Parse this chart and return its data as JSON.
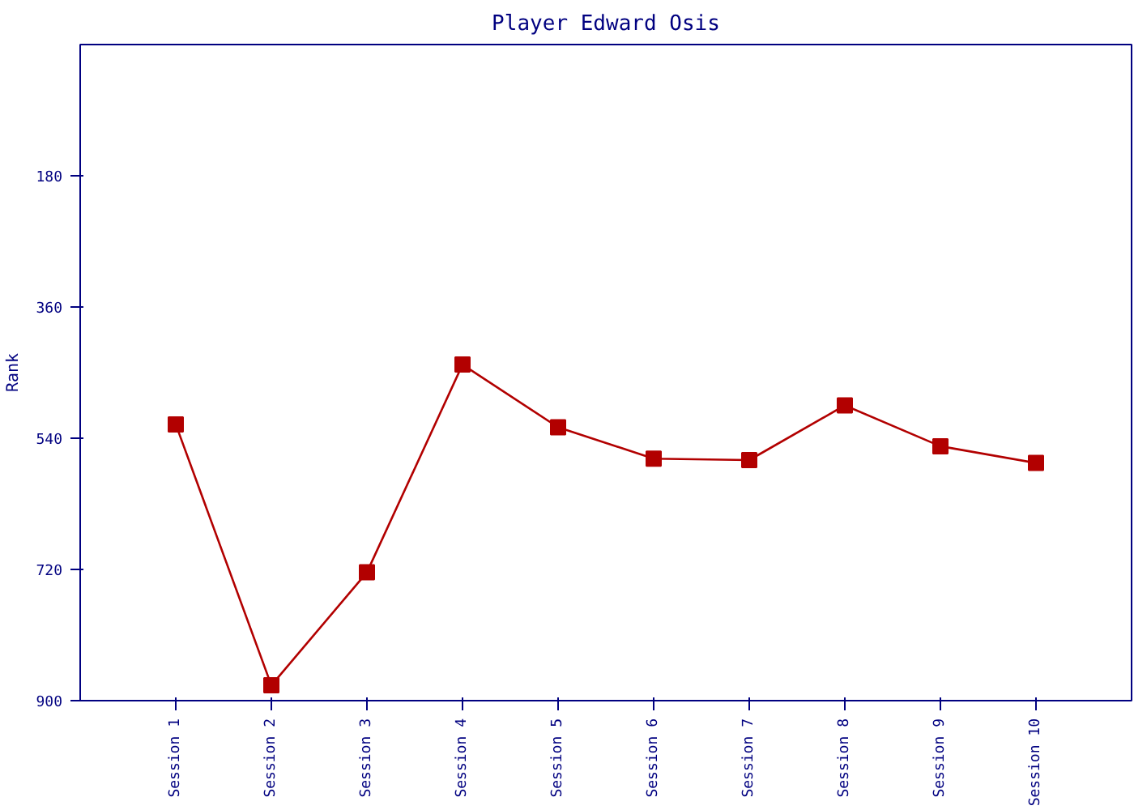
{
  "chart_data": {
    "type": "line",
    "title": "Player Edward Osis",
    "ylabel": "Rank",
    "categories": [
      "Session 1",
      "Session 2",
      "Session 3",
      "Session 4",
      "Session 5",
      "Session 6",
      "Session 7",
      "Session 8",
      "Session 9",
      "Session 10"
    ],
    "series": [
      {
        "color": "#b20000",
        "values": [
          521,
          879,
          724,
          439,
          525,
          568,
          570,
          495,
          551,
          574
        ]
      }
    ],
    "ylim": [
      900,
      0
    ],
    "yticks": [
      180,
      360,
      540,
      720,
      900
    ],
    "marker": "square",
    "line_style": "solid"
  }
}
